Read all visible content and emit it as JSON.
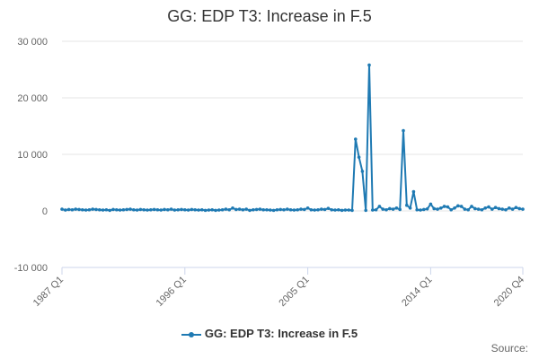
{
  "chart_data": {
    "type": "line",
    "title": "GG: EDP T3: Increase in F.5",
    "xlabel": "",
    "ylabel": "",
    "source_label": "Source:",
    "color": "#1f7ab3",
    "grid": true,
    "legend_position": "bottom",
    "ylim": [
      -10000,
      30000
    ],
    "yticks": [
      -10000,
      0,
      10000,
      20000,
      30000
    ],
    "ytick_labels": [
      "-10 000",
      "0",
      "10 000",
      "20 000",
      "30 000"
    ],
    "xtick_labels": [
      "1987 Q1",
      "1996 Q1",
      "2005 Q1",
      "2014 Q1",
      "2020 Q4"
    ],
    "x": [
      "1987 Q1",
      "1987 Q2",
      "1987 Q3",
      "1987 Q4",
      "1988 Q1",
      "1988 Q2",
      "1988 Q3",
      "1988 Q4",
      "1989 Q1",
      "1989 Q2",
      "1989 Q3",
      "1989 Q4",
      "1990 Q1",
      "1990 Q2",
      "1990 Q3",
      "1990 Q4",
      "1991 Q1",
      "1991 Q2",
      "1991 Q3",
      "1991 Q4",
      "1992 Q1",
      "1992 Q2",
      "1992 Q3",
      "1992 Q4",
      "1993 Q1",
      "1993 Q2",
      "1993 Q3",
      "1993 Q4",
      "1994 Q1",
      "1994 Q2",
      "1994 Q3",
      "1994 Q4",
      "1995 Q1",
      "1995 Q2",
      "1995 Q3",
      "1995 Q4",
      "1996 Q1",
      "1996 Q2",
      "1996 Q3",
      "1996 Q4",
      "1997 Q1",
      "1997 Q2",
      "1997 Q3",
      "1997 Q4",
      "1998 Q1",
      "1998 Q2",
      "1998 Q3",
      "1998 Q4",
      "1999 Q1",
      "1999 Q2",
      "1999 Q3",
      "1999 Q4",
      "2000 Q1",
      "2000 Q2",
      "2000 Q3",
      "2000 Q4",
      "2001 Q1",
      "2001 Q2",
      "2001 Q3",
      "2001 Q4",
      "2002 Q1",
      "2002 Q2",
      "2002 Q3",
      "2002 Q4",
      "2003 Q1",
      "2003 Q2",
      "2003 Q3",
      "2003 Q4",
      "2004 Q1",
      "2004 Q2",
      "2004 Q3",
      "2004 Q4",
      "2005 Q1",
      "2005 Q2",
      "2005 Q3",
      "2005 Q4",
      "2006 Q1",
      "2006 Q2",
      "2006 Q3",
      "2006 Q4",
      "2007 Q1",
      "2007 Q2",
      "2007 Q3",
      "2007 Q4",
      "2008 Q1",
      "2008 Q2",
      "2008 Q3",
      "2008 Q4",
      "2009 Q1",
      "2009 Q2",
      "2009 Q3",
      "2009 Q4",
      "2010 Q1",
      "2010 Q2",
      "2010 Q3",
      "2010 Q4",
      "2011 Q1",
      "2011 Q2",
      "2011 Q3",
      "2011 Q4",
      "2012 Q1",
      "2012 Q2",
      "2012 Q3",
      "2012 Q4",
      "2013 Q1",
      "2013 Q2",
      "2013 Q3",
      "2013 Q4",
      "2014 Q1",
      "2014 Q2",
      "2014 Q3",
      "2014 Q4",
      "2015 Q1",
      "2015 Q2",
      "2015 Q3",
      "2015 Q4",
      "2016 Q1",
      "2016 Q2",
      "2016 Q3",
      "2016 Q4",
      "2017 Q1",
      "2017 Q2",
      "2017 Q3",
      "2017 Q4",
      "2018 Q1",
      "2018 Q2",
      "2018 Q3",
      "2018 Q4",
      "2019 Q1",
      "2019 Q2",
      "2019 Q3",
      "2019 Q4",
      "2020 Q1",
      "2020 Q2",
      "2020 Q3",
      "2020 Q4"
    ],
    "series": [
      {
        "name": "GG: EDP T3: Increase in F.5",
        "values": [
          300,
          150,
          250,
          200,
          300,
          250,
          200,
          150,
          200,
          300,
          250,
          200,
          150,
          200,
          100,
          250,
          200,
          150,
          200,
          250,
          300,
          200,
          150,
          250,
          200,
          150,
          200,
          250,
          200,
          150,
          250,
          200,
          300,
          150,
          200,
          250,
          200,
          150,
          250,
          200,
          150,
          200,
          100,
          150,
          200,
          100,
          150,
          200,
          300,
          200,
          500,
          250,
          300,
          200,
          300,
          100,
          200,
          250,
          300,
          200,
          200,
          150,
          100,
          200,
          250,
          200,
          300,
          200,
          150,
          200,
          300,
          250,
          500,
          200,
          150,
          200,
          300,
          250,
          450,
          200,
          150,
          200,
          100,
          150,
          150,
          100,
          12700,
          9500,
          7000,
          100,
          25800,
          150,
          200,
          800,
          300,
          200,
          400,
          300,
          500,
          250,
          14200,
          1000,
          500,
          3400,
          200,
          150,
          250,
          350,
          1200,
          400,
          300,
          500,
          800,
          700,
          200,
          500,
          900,
          800,
          300,
          200,
          800,
          400,
          300,
          200,
          500,
          700,
          300,
          600,
          400,
          300,
          200,
          500,
          300,
          600,
          400,
          300
        ]
      }
    ]
  }
}
